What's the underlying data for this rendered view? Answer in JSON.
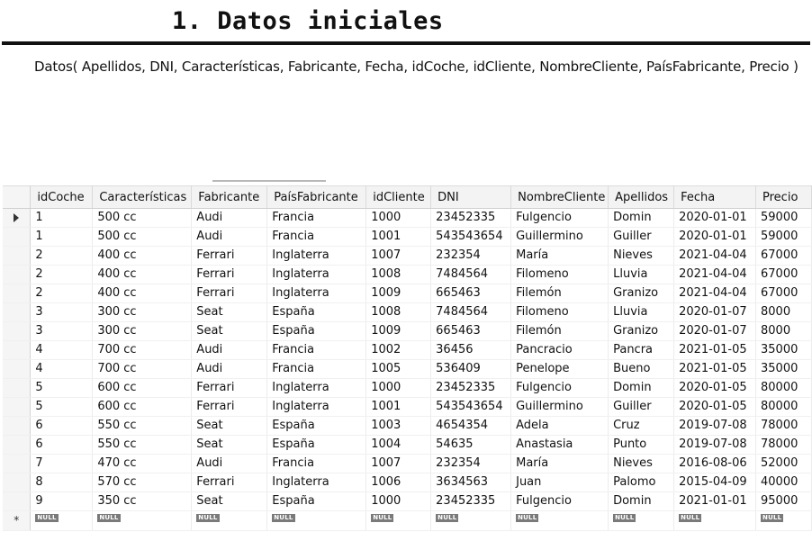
{
  "heading": "1. Datos iniciales",
  "relation": "Datos( Apellidos, DNI, Características, Fabricante, Fecha, idCoche, idCliente, NombreCliente, PaísFabricante, Precio )",
  "grid": {
    "columns": [
      "idCoche",
      "Características",
      "Fabricante",
      "PaísFabricante",
      "idCliente",
      "DNI",
      "NombreCliente",
      "Apellidos",
      "Fecha",
      "Precio"
    ],
    "rows": [
      [
        "1",
        "500 cc",
        "Audi",
        "Francia",
        "1000",
        "23452335",
        "Fulgencio",
        "Domin",
        "2020-01-01",
        "59000"
      ],
      [
        "1",
        "500 cc",
        "Audi",
        "Francia",
        "1001",
        "543543654",
        "Guillermino",
        "Guiller",
        "2020-01-01",
        "59000"
      ],
      [
        "2",
        "400 cc",
        "Ferrari",
        "Inglaterra",
        "1007",
        "232354",
        "María",
        "Nieves",
        "2021-04-04",
        "67000"
      ],
      [
        "2",
        "400 cc",
        "Ferrari",
        "Inglaterra",
        "1008",
        "7484564",
        "Filomeno",
        "Lluvia",
        "2021-04-04",
        "67000"
      ],
      [
        "2",
        "400 cc",
        "Ferrari",
        "Inglaterra",
        "1009",
        "665463",
        "Filemón",
        "Granizo",
        "2021-04-04",
        "67000"
      ],
      [
        "3",
        "300 cc",
        "Seat",
        "España",
        "1008",
        "7484564",
        "Filomeno",
        "Lluvia",
        "2020-01-07",
        "8000"
      ],
      [
        "3",
        "300 cc",
        "Seat",
        "España",
        "1009",
        "665463",
        "Filemón",
        "Granizo",
        "2020-01-07",
        "8000"
      ],
      [
        "4",
        "700 cc",
        "Audi",
        "Francia",
        "1002",
        "36456",
        "Pancracio",
        "Pancra",
        "2021-01-05",
        "35000"
      ],
      [
        "4",
        "700 cc",
        "Audi",
        "Francia",
        "1005",
        "536409",
        "Penelope",
        "Bueno",
        "2021-01-05",
        "35000"
      ],
      [
        "5",
        "600 cc",
        "Ferrari",
        "Inglaterra",
        "1000",
        "23452335",
        "Fulgencio",
        "Domin",
        "2020-01-05",
        "80000"
      ],
      [
        "5",
        "600 cc",
        "Ferrari",
        "Inglaterra",
        "1001",
        "543543654",
        "Guillermino",
        "Guiller",
        "2020-01-05",
        "80000"
      ],
      [
        "6",
        "550 cc",
        "Seat",
        "España",
        "1003",
        "4654354",
        "Adela",
        "Cruz",
        "2019-07-08",
        "78000"
      ],
      [
        "6",
        "550 cc",
        "Seat",
        "España",
        "1004",
        "54635",
        "Anastasia",
        "Punto",
        "2019-07-08",
        "78000"
      ],
      [
        "7",
        "470 cc",
        "Audi",
        "Francia",
        "1007",
        "232354",
        "María",
        "Nieves",
        "2016-08-06",
        "52000"
      ],
      [
        "8",
        "570 cc",
        "Ferrari",
        "Inglaterra",
        "1006",
        "3634563",
        "Juan",
        "Palomo",
        "2015-04-09",
        "40000"
      ],
      [
        "9",
        "350 cc",
        "Seat",
        "España",
        "1000",
        "23452335",
        "Fulgencio",
        "Domin",
        "2021-01-01",
        "95000"
      ]
    ],
    "null_label": "NULL",
    "current_row_icon": "current-row-arrow-icon",
    "new_row_icon": "new-row-asterisk-icon",
    "new_row_symbol": "*"
  }
}
